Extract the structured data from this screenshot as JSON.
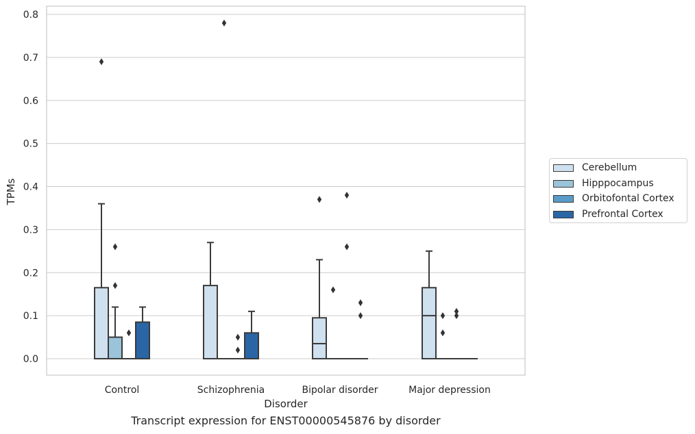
{
  "chart_data": {
    "type": "box",
    "caption": "Transcript expression for ENST00000545876 by disorder",
    "xlabel": "Disorder",
    "ylabel": "TPMs",
    "ylim": [
      -0.038,
      0.82
    ],
    "yticks": [
      "0.0",
      "0.1",
      "0.2",
      "0.3",
      "0.4",
      "0.5",
      "0.6",
      "0.7",
      "0.8"
    ],
    "grid": true,
    "legend_placement": "right",
    "categories": [
      "Control",
      "Schizophrenia",
      "Bipolar disorder",
      "Major depression"
    ],
    "series": [
      {
        "name": "Cerebellum",
        "color": "#cfe0ef"
      },
      {
        "name": "Hipppocampus",
        "color": "#9bc3da"
      },
      {
        "name": "Orbitofontal Cortex",
        "color": "#5a9bc8"
      },
      {
        "name": "Prefrontal Cortex",
        "color": "#2a66a6"
      }
    ],
    "boxes": [
      [
        {
          "q1": 0.0,
          "median": 0.0,
          "q3": 0.165,
          "whislo": 0.0,
          "whishi": 0.36,
          "fliers": [
            0.69
          ]
        },
        {
          "q1": 0.0,
          "median": 0.0,
          "q3": 0.05,
          "whislo": 0.0,
          "whishi": 0.12,
          "fliers": [
            0.26,
            0.17
          ]
        },
        {
          "q1": 0.0,
          "median": 0.0,
          "q3": 0.0,
          "whislo": 0.0,
          "whishi": 0.0,
          "fliers": [
            0.06
          ]
        },
        {
          "q1": 0.0,
          "median": 0.0,
          "q3": 0.085,
          "whislo": 0.0,
          "whishi": 0.12,
          "fliers": []
        }
      ],
      [
        {
          "q1": 0.0,
          "median": 0.0,
          "q3": 0.17,
          "whislo": 0.0,
          "whishi": 0.27,
          "fliers": []
        },
        {
          "q1": 0.0,
          "median": 0.0,
          "q3": 0.0,
          "whislo": 0.0,
          "whishi": 0.0,
          "fliers": [
            0.78
          ]
        },
        {
          "q1": 0.0,
          "median": 0.0,
          "q3": 0.0,
          "whislo": 0.0,
          "whishi": 0.0,
          "fliers": [
            0.05,
            0.02
          ]
        },
        {
          "q1": 0.0,
          "median": 0.0,
          "q3": 0.06,
          "whislo": 0.0,
          "whishi": 0.11,
          "fliers": []
        }
      ],
      [
        {
          "q1": 0.0,
          "median": 0.035,
          "q3": 0.095,
          "whislo": 0.0,
          "whishi": 0.23,
          "fliers": [
            0.37
          ]
        },
        {
          "q1": 0.0,
          "median": 0.0,
          "q3": 0.0,
          "whislo": 0.0,
          "whishi": 0.0,
          "fliers": [
            0.16
          ]
        },
        {
          "q1": 0.0,
          "median": 0.0,
          "q3": 0.0,
          "whislo": 0.0,
          "whishi": 0.0,
          "fliers": [
            0.38,
            0.26
          ]
        },
        {
          "q1": 0.0,
          "median": 0.0,
          "q3": 0.0,
          "whislo": 0.0,
          "whishi": 0.0,
          "fliers": [
            0.13,
            0.1
          ]
        }
      ],
      [
        {
          "q1": 0.0,
          "median": 0.1,
          "q3": 0.165,
          "whislo": 0.0,
          "whishi": 0.25,
          "fliers": []
        },
        {
          "q1": 0.0,
          "median": 0.0,
          "q3": 0.0,
          "whislo": 0.0,
          "whishi": 0.0,
          "fliers": [
            0.1,
            0.06
          ]
        },
        {
          "q1": 0.0,
          "median": 0.0,
          "q3": 0.0,
          "whislo": 0.0,
          "whishi": 0.0,
          "fliers": [
            0.11,
            0.1
          ]
        },
        {
          "q1": 0.0,
          "median": 0.0,
          "q3": 0.0,
          "whislo": 0.0,
          "whishi": 0.0,
          "fliers": []
        }
      ]
    ]
  }
}
